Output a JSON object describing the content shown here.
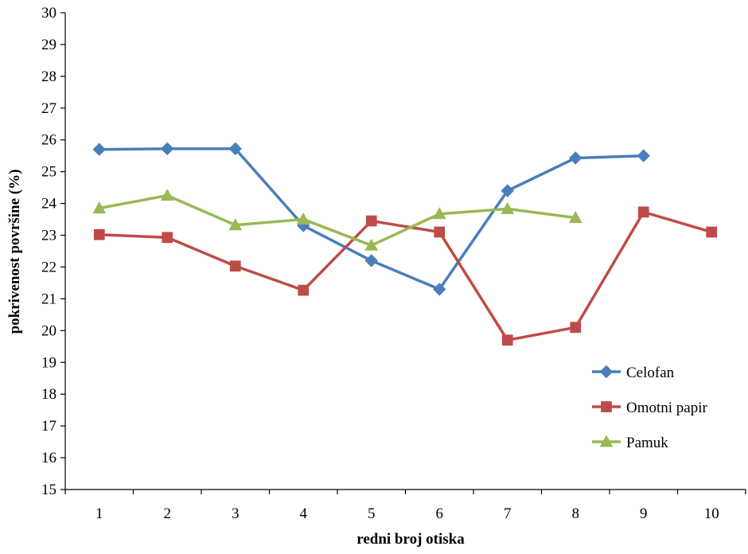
{
  "chart_data": {
    "type": "line",
    "xlabel": "redni broj otiska",
    "ylabel": "pokrivenost površine (%)",
    "ylim": [
      15,
      30
    ],
    "y_ticks": [
      15,
      16,
      17,
      18,
      19,
      20,
      21,
      22,
      23,
      24,
      25,
      26,
      27,
      28,
      29,
      30
    ],
    "categories": [
      "1",
      "2",
      "3",
      "4",
      "5",
      "6",
      "7",
      "8",
      "9",
      "10"
    ],
    "grid": false,
    "legend_position": "bottom-right",
    "series": [
      {
        "name": "Celofan",
        "color": "#4a7ebb",
        "marker": "diamond",
        "values": [
          25.7,
          25.72,
          25.72,
          23.3,
          22.2,
          21.3,
          24.4,
          25.43,
          25.5,
          null
        ]
      },
      {
        "name": "Omotni papir",
        "color": "#be4b48",
        "marker": "square",
        "values": [
          23.02,
          22.93,
          22.03,
          21.27,
          23.45,
          23.1,
          19.7,
          20.1,
          23.73,
          23.1
        ]
      },
      {
        "name": "Pamuk",
        "color": "#98b954",
        "marker": "triangle",
        "values": [
          23.85,
          24.25,
          23.32,
          23.5,
          22.68,
          23.67,
          23.83,
          23.55,
          null,
          null
        ]
      }
    ]
  }
}
